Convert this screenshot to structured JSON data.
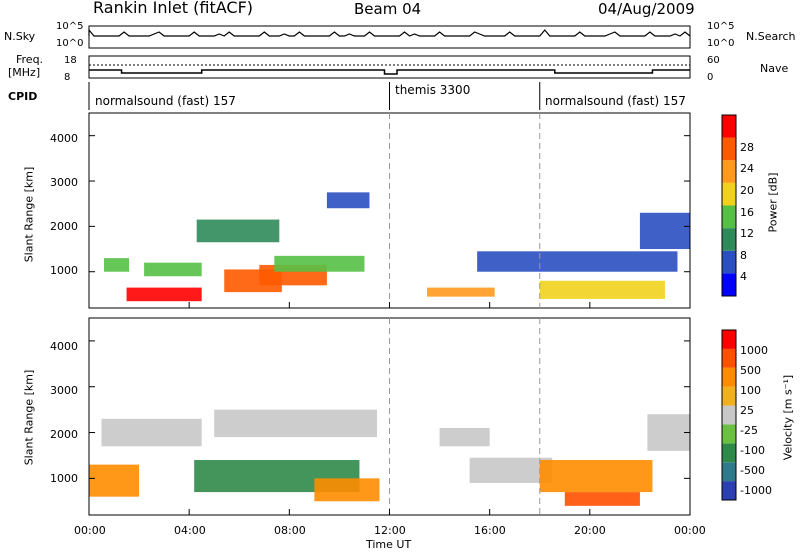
{
  "header": {
    "station": "Rankin Inlet (fitACF)",
    "beam": "Beam 04",
    "date": "04/Aug/2009"
  },
  "noise_panel": {
    "left_label": "N.Sky",
    "right_label": "N.Search",
    "ticks_left": [
      "10^5",
      "10^0"
    ],
    "ticks_right": [
      "10^5",
      "10^0"
    ]
  },
  "freq_panel": {
    "left_label_top": "Freq.",
    "left_label_unit": "[MHz]",
    "right_label": "Nave",
    "ticks_left": [
      "18",
      "8"
    ],
    "ticks_right": [
      "60",
      "0"
    ]
  },
  "cpid_panel": {
    "label": "CPID",
    "segments": [
      "normalsound (fast) 157",
      "themis 3300",
      "normalsound (fast) 157"
    ]
  },
  "chart_data": [
    {
      "type": "heatmap",
      "quantity": "Power",
      "ylabel": "Slant Range [km]",
      "y_ticks": [
        "1000",
        "2000",
        "3000",
        "4000"
      ],
      "ylim": [
        200,
        4500
      ],
      "colorbar_label": "Power [dB]",
      "colorbar_ticks": [
        "4",
        "8",
        "12",
        "16",
        "20",
        "24",
        "28"
      ],
      "colorbar_colors": [
        "#0000ff",
        "#2a4fc0",
        "#2f8a5a",
        "#56c046",
        "#f0d21e",
        "#ff9a1e",
        "#ff5a00",
        "#ff0000"
      ],
      "regions": [
        {
          "x0": 0.6,
          "x1": 1.6,
          "y0": 1000,
          "y1": 1300,
          "level": 3
        },
        {
          "x0": 1.5,
          "x1": 4.5,
          "y0": 350,
          "y1": 650,
          "level": 7
        },
        {
          "x0": 2.2,
          "x1": 4.5,
          "y0": 900,
          "y1": 1200,
          "level": 3
        },
        {
          "x0": 4.3,
          "x1": 7.6,
          "y0": 1650,
          "y1": 2150,
          "level": 2
        },
        {
          "x0": 5.4,
          "x1": 7.7,
          "y0": 550,
          "y1": 1050,
          "level": 6
        },
        {
          "x0": 6.8,
          "x1": 9.5,
          "y0": 700,
          "y1": 1150,
          "level": 6
        },
        {
          "x0": 7.4,
          "x1": 11.0,
          "y0": 1000,
          "y1": 1350,
          "level": 3
        },
        {
          "x0": 9.5,
          "x1": 11.2,
          "y0": 2400,
          "y1": 2750,
          "level": 1
        },
        {
          "x0": 13.5,
          "x1": 16.2,
          "y0": 450,
          "y1": 650,
          "level": 5
        },
        {
          "x0": 15.5,
          "x1": 23.5,
          "y0": 1000,
          "y1": 1450,
          "level": 1
        },
        {
          "x0": 18.0,
          "x1": 23.0,
          "y0": 400,
          "y1": 800,
          "level": 4
        },
        {
          "x0": 22.0,
          "x1": 24.0,
          "y0": 1500,
          "y1": 2300,
          "level": 1
        }
      ]
    },
    {
      "type": "heatmap",
      "quantity": "Velocity",
      "ylabel": "Slant Range [km]",
      "y_ticks": [
        "1000",
        "2000",
        "3000",
        "4000"
      ],
      "ylim": [
        200,
        4500
      ],
      "xlabel": "Time UT",
      "x_ticks": [
        "00:00",
        "04:00",
        "08:00",
        "12:00",
        "16:00",
        "20:00",
        "00:00"
      ],
      "xlim": [
        0,
        24
      ],
      "colorbar_label": "Velocity [m s⁻¹]",
      "colorbar_ticks": [
        "1000",
        "500",
        "100",
        "25",
        "-25",
        "-100",
        "-500",
        "-1000"
      ],
      "colorbar_colors": [
        "#2b3fb0",
        "#2f7a8a",
        "#2f8a4a",
        "#6cc040",
        "#c8c8c8",
        "#f0b020",
        "#ff8c00",
        "#ff5000",
        "#ff0000"
      ],
      "regions": [
        {
          "x0": 0.0,
          "x1": 2.0,
          "y0": 600,
          "y1": 1300,
          "level": 6
        },
        {
          "x0": 0.5,
          "x1": 4.5,
          "y0": 1700,
          "y1": 2300,
          "level": 4
        },
        {
          "x0": 4.2,
          "x1": 10.8,
          "y0": 700,
          "y1": 1400,
          "level": 2
        },
        {
          "x0": 5.0,
          "x1": 11.5,
          "y0": 1900,
          "y1": 2500,
          "level": 4
        },
        {
          "x0": 9.0,
          "x1": 11.6,
          "y0": 500,
          "y1": 1000,
          "level": 6
        },
        {
          "x0": 14.0,
          "x1": 16.0,
          "y0": 1700,
          "y1": 2100,
          "level": 4
        },
        {
          "x0": 15.2,
          "x1": 18.5,
          "y0": 900,
          "y1": 1450,
          "level": 4
        },
        {
          "x0": 18.0,
          "x1": 22.5,
          "y0": 700,
          "y1": 1400,
          "level": 6
        },
        {
          "x0": 19.0,
          "x1": 22.0,
          "y0": 400,
          "y1": 700,
          "level": 7
        },
        {
          "x0": 22.3,
          "x1": 24.0,
          "y0": 1600,
          "y1": 2400,
          "level": 4
        }
      ]
    }
  ]
}
